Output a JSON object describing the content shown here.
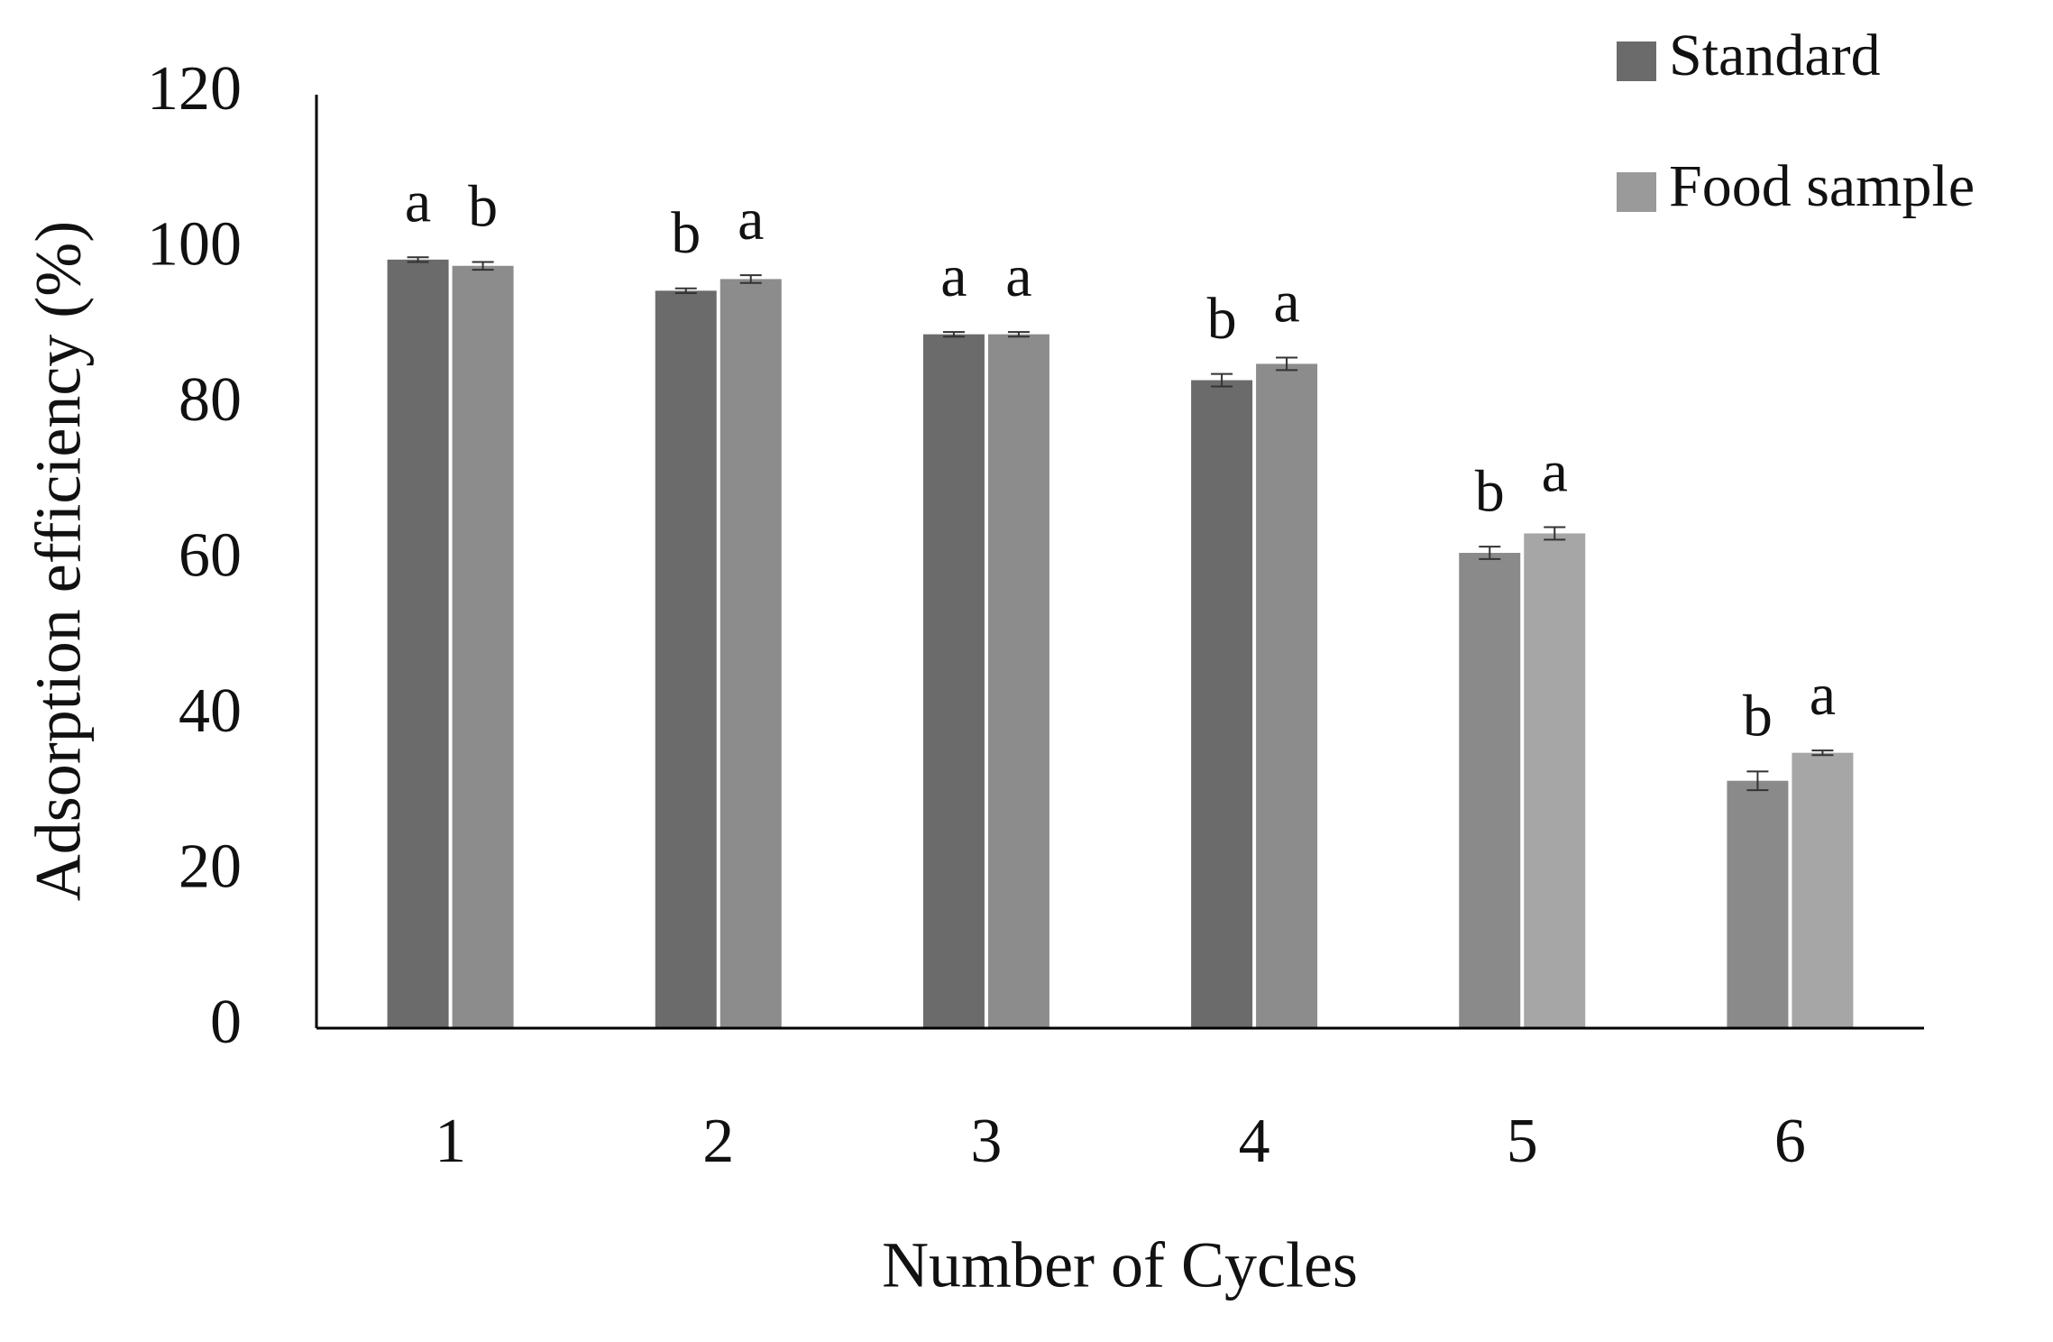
{
  "chart_data": {
    "type": "bar",
    "x_label": "Number of Cycles",
    "y_label": "Adsorption efficiency (%)",
    "categories": [
      "1",
      "2",
      "3",
      "4",
      "5",
      "6"
    ],
    "series": [
      {
        "name": "Standard",
        "color": "#6b6b6b",
        "bar_colors": [
          "#6b6b6b",
          "#6b6b6b",
          "#6b6b6b",
          "#6b6b6b",
          "#8a8a8a",
          "#8a8a8a"
        ],
        "values": [
          98.8,
          94.8,
          89.2,
          83.3,
          61.1,
          31.8
        ],
        "errors": [
          0.3,
          0.3,
          0.3,
          0.8,
          0.8,
          1.2
        ],
        "letters": [
          "a",
          "b",
          "a",
          "b",
          "b",
          "b"
        ]
      },
      {
        "name": "Food sample",
        "color": "#9a9a9a",
        "bar_colors": [
          "#8c8c8c",
          "#8c8c8c",
          "#8c8c8c",
          "#8c8c8c",
          "#a6a6a6",
          "#a6a6a6"
        ],
        "values": [
          98.0,
          96.3,
          89.2,
          85.4,
          63.6,
          35.4
        ],
        "errors": [
          0.5,
          0.5,
          0.3,
          0.8,
          0.8,
          0.3
        ],
        "letters": [
          "b",
          "a",
          "a",
          "a",
          "a",
          "a"
        ]
      }
    ],
    "ylim": [
      0,
      120
    ],
    "yticks": [
      0,
      20,
      40,
      60,
      80,
      100,
      120
    ],
    "grid": false,
    "legend": "top-right"
  }
}
